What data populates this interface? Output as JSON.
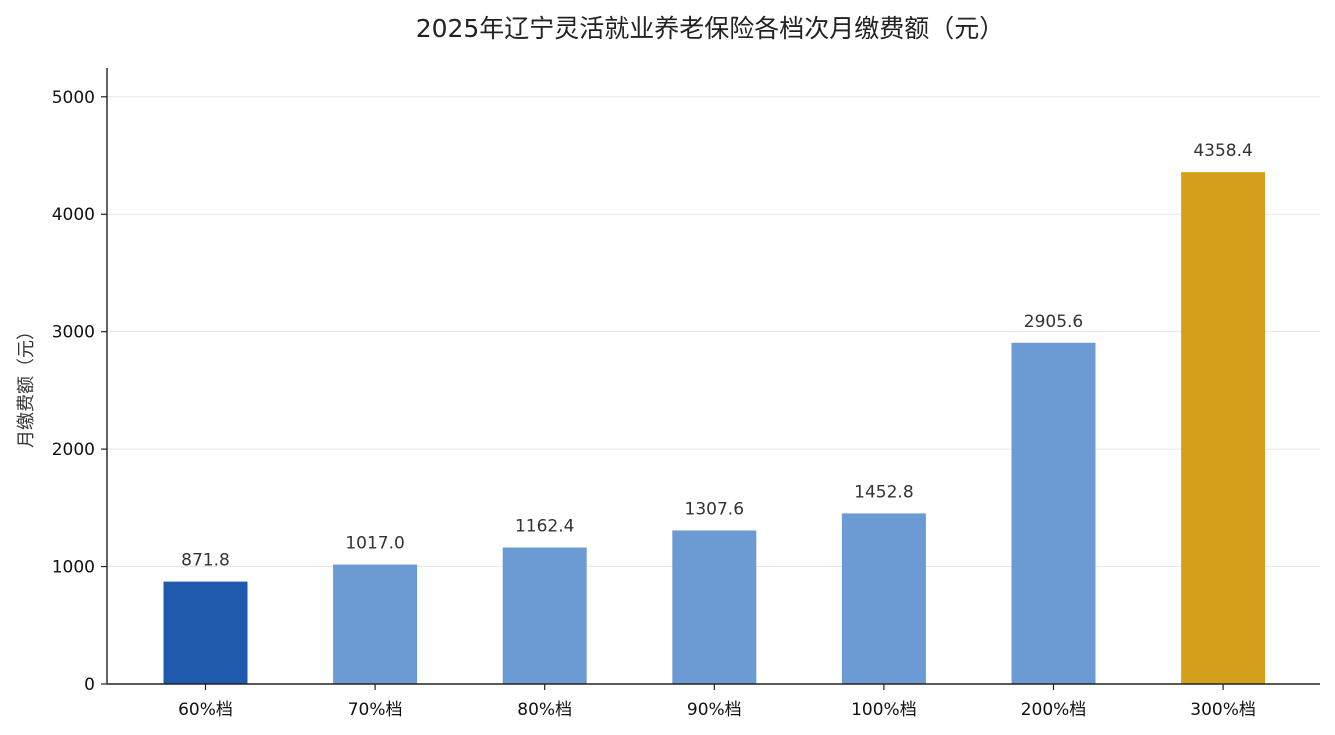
{
  "chart_data": {
    "type": "bar",
    "title": "2025年辽宁灵活就业养老保险各档次月缴费额（元）",
    "xlabel": "",
    "ylabel": "月缴费额（元）",
    "categories": [
      "60%档",
      "70%档",
      "80%档",
      "90%档",
      "100%档",
      "200%档",
      "300%档"
    ],
    "values": [
      871.8,
      1017.0,
      1162.4,
      1307.6,
      1452.8,
      2905.6,
      4358.4
    ],
    "data_labels": [
      "871.8",
      "1017.0",
      "1162.4",
      "1307.6",
      "1452.8",
      "2905.6",
      "4358.4"
    ],
    "bar_colors": [
      "#1f5aad",
      "#6b9bd2",
      "#6b9bd2",
      "#6b9bd2",
      "#6b9bd2",
      "#6b9bd2",
      "#d4a01b"
    ],
    "ylim": [
      0,
      5250
    ],
    "yticks": [
      0,
      1000,
      2000,
      3000,
      4000,
      5000
    ],
    "grid": "horizontal",
    "legend": "none"
  }
}
